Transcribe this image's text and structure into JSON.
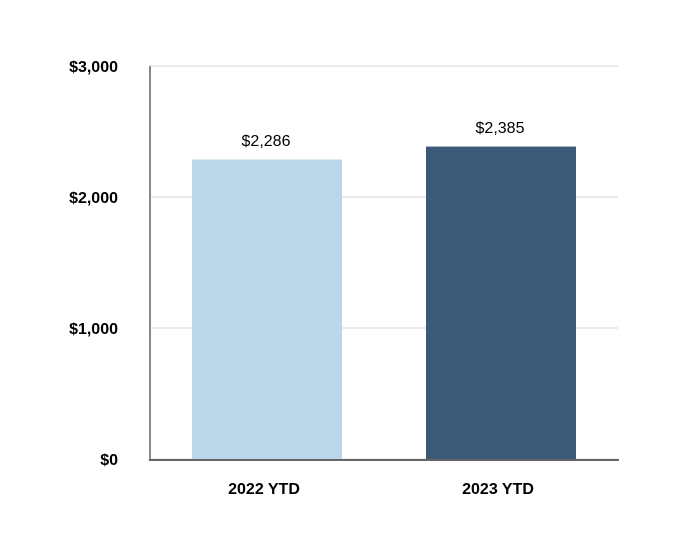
{
  "chart_data": {
    "type": "bar",
    "categories": [
      "2022 YTD",
      "2023 YTD"
    ],
    "values": [
      2286,
      2385
    ],
    "value_labels": [
      "$2,286",
      "$2,385"
    ],
    "colors": [
      "#bcd6e9",
      "#3b5a77"
    ],
    "ylim": [
      0,
      3000
    ],
    "yticks": [
      {
        "value": 0,
        "label": "$0"
      },
      {
        "value": 1000,
        "label": "$1,000"
      },
      {
        "value": 2000,
        "label": "$2,000"
      },
      {
        "value": 3000,
        "label": "$3,000"
      }
    ],
    "grid": true
  }
}
